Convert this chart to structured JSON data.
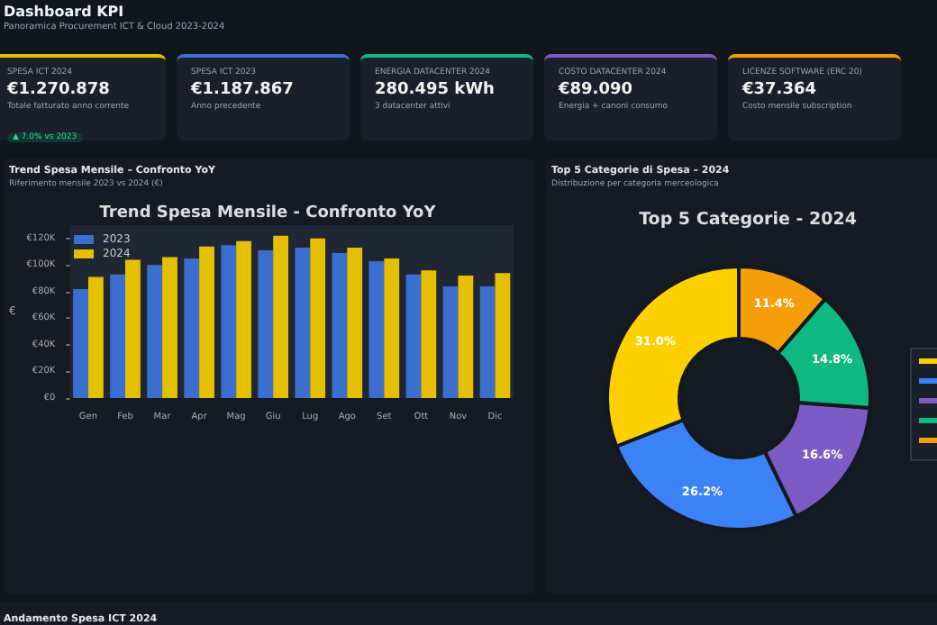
{
  "chart_data": [
    {
      "type": "other",
      "title": "Dashboard KPI",
      "subtitle": "Panoramica Procurement ICT & Cloud 2023-2024"
    },
    {
      "type": "other",
      "title": "SPESA ICT 2024",
      "annotations": [
        "€1.270.878",
        "Totale fatturato anno corrente",
        "▲ 7.0% vs 2023"
      ]
    },
    {
      "type": "other",
      "title": "SPESA ICT 2023",
      "annotations": [
        "€1.187.867",
        "Anno precedente"
      ]
    },
    {
      "type": "other",
      "title": "ENERGIA DATACENTER 2024",
      "annotations": [
        "280.495 kWh",
        "3 datacenter attivi"
      ]
    },
    {
      "type": "other",
      "title": "COSTO DATACENTER 2024",
      "annotations": [
        "€89.090",
        "Energia + canoni consumo"
      ]
    },
    {
      "type": "other",
      "title": "LICENZE SOFTWARE (ERC 20)",
      "annotations": [
        "€37.364",
        "Costo mensile subscription"
      ]
    },
    {
      "type": "bar",
      "title": "Trend Spesa Mensile - Confronto YoY",
      "ylabel": "€",
      "annotations": [
        "Trend Spesa Mensile – Confronto YoY",
        "Riferimento mensile 2023 vs 2024 (€)"
      ],
      "categories": [
        "Gen",
        "Feb",
        "Mar",
        "Apr",
        "Mag",
        "Giu",
        "Lug",
        "Ago",
        "Set",
        "Ott",
        "Nov",
        "Dic"
      ],
      "series": [
        {
          "name": "2023",
          "color": "#3a6fd0",
          "values": [
            82000,
            93000,
            100000,
            105000,
            115000,
            111000,
            113000,
            109000,
            103000,
            93000,
            84000,
            84000
          ]
        },
        {
          "name": "2024",
          "color": "#e5c000",
          "values": [
            91000,
            104000,
            106000,
            114000,
            118000,
            122000,
            120000,
            113000,
            105000,
            96000,
            92000,
            94000
          ]
        }
      ],
      "ylim": [
        0,
        130000
      ],
      "yticks": [
        {
          "value": 0,
          "label": "€0"
        },
        {
          "value": 20000,
          "label": "€20K"
        },
        {
          "value": 40000,
          "label": "€40K"
        },
        {
          "value": 60000,
          "label": "€60K"
        },
        {
          "value": 80000,
          "label": "€80K"
        },
        {
          "value": 100000,
          "label": "€100K"
        },
        {
          "value": 120000,
          "label": "€120K"
        }
      ],
      "legend": "top left"
    },
    {
      "type": "donut",
      "title": "Top 5 Categorie - 2024",
      "annotations": [
        "Top 5 Categorie di Spesa – 2024",
        "Distribuzione per categoria merceologica"
      ],
      "categories": [
        null,
        null,
        null,
        null,
        null
      ],
      "values": [
        31.0,
        26.2,
        16.6,
        14.8,
        11.4
      ],
      "value_labels": [
        "31.0%",
        "26.2%",
        "16.6%",
        "14.8%",
        "11.4%"
      ],
      "colors": [
        "#ffd000",
        "#3b82f6",
        "#7c5cc4",
        "#10b981",
        "#f59e0b"
      ]
    },
    {
      "type": "other",
      "title": "Andamento Spesa ICT 2024"
    }
  ]
}
